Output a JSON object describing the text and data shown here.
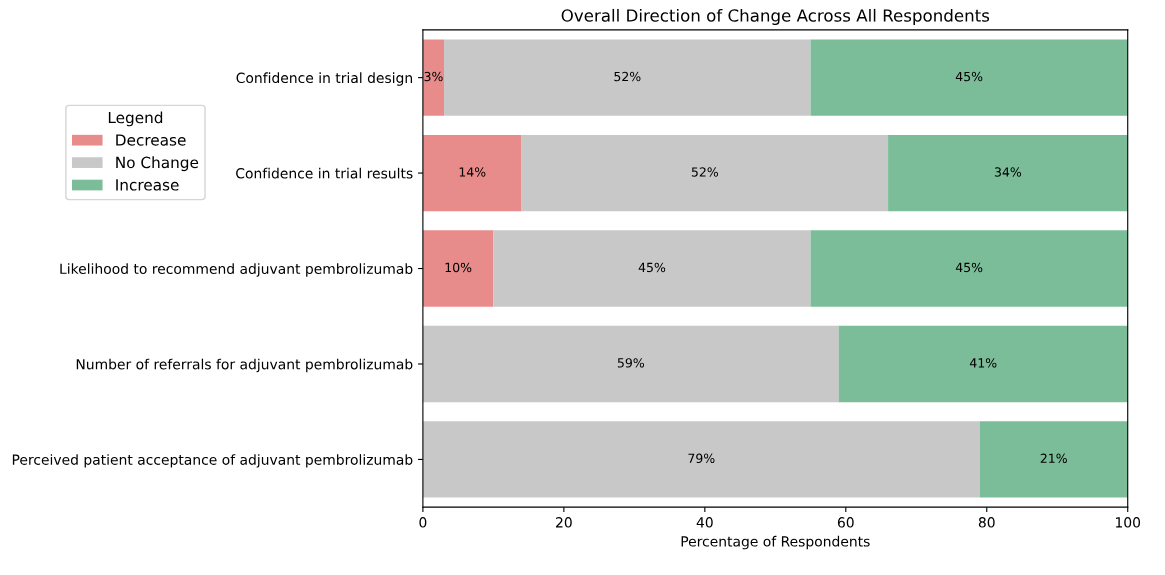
{
  "chart_data": {
    "type": "bar",
    "orientation": "horizontal",
    "stacked": true,
    "title": "Overall Direction of Change Across All Respondents",
    "xlabel": "Percentage of Respondents",
    "legend_title": "Legend",
    "legend": "top left",
    "categories": [
      "Confidence in trial design",
      "Confidence in trial results",
      "Likelihood to recommend adjuvant pembrolizumab",
      "Number of referrals for adjuvant pembrolizumab",
      "Perceived patient acceptance of adjuvant pembrolizumab"
    ],
    "series": [
      {
        "name": "Decrease",
        "color": "#e88b8b",
        "values": [
          3,
          14,
          10,
          0,
          0
        ],
        "value_labels": [
          "3%",
          "14%",
          "10%",
          null,
          null
        ]
      },
      {
        "name": "No Change",
        "color": "#c8c8c8",
        "values": [
          52,
          52,
          45,
          59,
          79
        ],
        "value_labels": [
          "52%",
          "52%",
          "45%",
          "59%",
          "79%"
        ]
      },
      {
        "name": "Increase",
        "color": "#7bbd98",
        "values": [
          45,
          34,
          45,
          41,
          21
        ],
        "value_labels": [
          "45%",
          "34%",
          "45%",
          "41%",
          "21%"
        ]
      }
    ],
    "xlim": [
      0,
      100
    ],
    "xticks": [
      0,
      20,
      40,
      60,
      80,
      100
    ],
    "grid": false
  }
}
